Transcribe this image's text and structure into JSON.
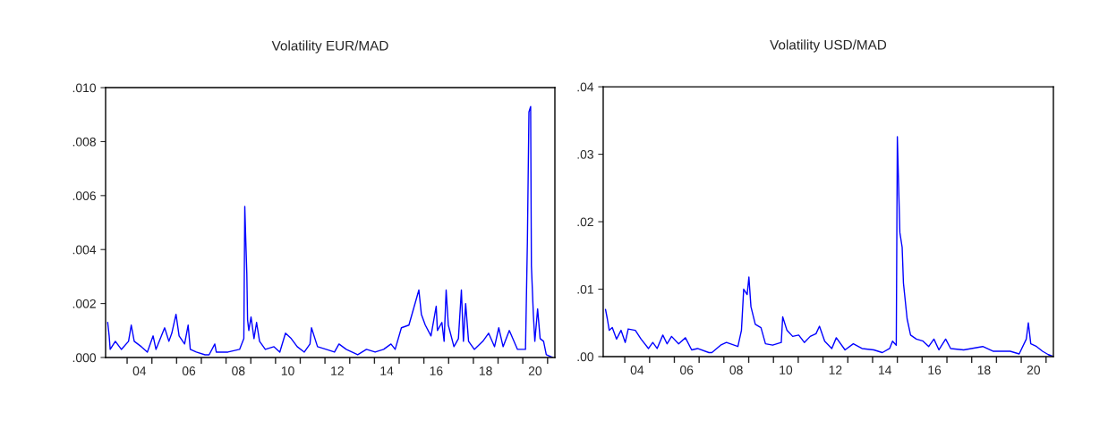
{
  "chart_data": [
    {
      "type": "line",
      "title": "Volatility EUR/MAD",
      "xlim": [
        "2003-02-17",
        "2021-04-19"
      ],
      "ylim": [
        0,
        0.01
      ],
      "xticks": [
        {
          "value": "2004-01-01",
          "label": null
        },
        {
          "value": "2005-01-01",
          "label": null
        },
        {
          "value": "2006-01-01",
          "label": null
        },
        {
          "value": "2007-01-01",
          "label": null
        },
        {
          "value": "2008-01-01",
          "label": null
        },
        {
          "value": "2009-01-01",
          "label": null
        },
        {
          "value": "2010-01-01",
          "label": null
        },
        {
          "value": "2011-01-01",
          "label": null
        },
        {
          "value": "2012-01-01",
          "label": null
        },
        {
          "value": "2013-01-01",
          "label": null
        },
        {
          "value": "2014-01-01",
          "label": null
        },
        {
          "value": "2015-01-01",
          "label": null
        },
        {
          "value": "2016-01-01",
          "label": null
        },
        {
          "value": "2017-01-01",
          "label": null
        },
        {
          "value": "2018-01-01",
          "label": null
        },
        {
          "value": "2019-01-01",
          "label": null
        },
        {
          "value": "2020-01-01",
          "label": null
        },
        {
          "value": "2021-01-01",
          "label": null
        },
        {
          "value": "2004-07-01",
          "label": "04"
        },
        {
          "value": "2006-07-01",
          "label": "06"
        },
        {
          "value": "2008-07-01",
          "label": "08"
        },
        {
          "value": "2010-07-01",
          "label": "10"
        },
        {
          "value": "2012-07-01",
          "label": "12"
        },
        {
          "value": "2014-07-01",
          "label": "14"
        },
        {
          "value": "2016-07-01",
          "label": "16"
        },
        {
          "value": "2018-07-01",
          "label": "18"
        },
        {
          "value": "2020-07-01",
          "label": "20"
        }
      ],
      "yticks": [
        {
          "value": 0,
          "label": ".000"
        },
        {
          "value": 0.002,
          "label": ".002"
        },
        {
          "value": 0.004,
          "label": ".004"
        },
        {
          "value": 0.006,
          "label": ".006"
        },
        {
          "value": 0.008,
          "label": ".008"
        },
        {
          "value": 0.01,
          "label": ".010"
        }
      ],
      "grid": false,
      "legend": false,
      "line_style": "solid",
      "marker": "none",
      "series": [
        {
          "color": "#0000ff",
          "x": [
            "2003-03-20",
            "2003-04-11",
            "2003-04-26",
            "2003-07-11",
            "2003-10-08",
            "2004-01-22",
            "2004-03-02",
            "2004-04-15",
            "2004-07-29",
            "2004-10-26",
            "2005-01-19",
            "2005-03-02",
            "2005-07-08",
            "2005-09-09",
            "2005-10-22",
            "2005-12-23",
            "2006-02-07",
            "2006-04-29",
            "2006-06-20",
            "2006-07-22",
            "2006-10-19",
            "2007-02-25",
            "2007-04-26",
            "2007-07-19",
            "2007-08-10",
            "2008-01-29",
            "2008-07-19",
            "2008-09-20",
            "2008-10-04",
            "2008-10-19",
            "2008-11-03",
            "2008-11-14",
            "2008-12-02",
            "2009-01-04",
            "2009-02-17",
            "2009-03-27",
            "2009-05-10",
            "2009-08-03",
            "2009-12-09",
            "2010-03-05",
            "2010-05-28",
            "2010-08-21",
            "2010-11-17",
            "2011-03-02",
            "2011-05-25",
            "2011-06-16",
            "2011-09-13",
            "2012-01-19",
            "2012-05-21",
            "2012-07-26",
            "2012-11-10",
            "2013-04-29",
            "2013-09-05",
            "2014-01-11",
            "2014-05-17",
            "2014-09-02",
            "2014-11-03",
            "2015-02-03",
            "2015-05-25",
            "2015-10-19",
            "2015-11-25",
            "2016-01-22",
            "2016-04-15",
            "2016-07-01",
            "2016-07-19",
            "2016-09-23",
            "2016-10-26",
            "2016-11-25",
            "2016-12-27",
            "2017-03-20",
            "2017-05-25",
            "2017-07-08",
            "2017-08-07",
            "2017-09-09",
            "2017-10-22",
            "2018-01-15",
            "2018-05-21",
            "2018-08-14",
            "2018-11-10",
            "2019-01-11",
            "2019-03-16",
            "2019-06-16",
            "2019-10-15",
            "2020-02-10",
            "2020-03-09",
            "2020-04-01",
            "2020-04-26",
            "2020-05-07",
            "2020-06-05",
            "2020-06-27",
            "2020-08-07",
            "2020-09-13",
            "2020-11-03",
            "2020-12-13",
            "2021-03-16"
          ],
          "values": [
            0.0013,
            0.0008,
            0.0003,
            0.0006,
            0.0003,
            0.0006,
            0.0012,
            0.0006,
            0.0004,
            0.0002,
            0.0008,
            0.0003,
            0.0011,
            0.0006,
            0.0009,
            0.0016,
            0.0008,
            0.0005,
            0.0012,
            0.0003,
            0.0002,
            0.0001,
            0.0001,
            0.0005,
            0.0002,
            0.0002,
            0.0003,
            0.0007,
            0.0056,
            0.0043,
            0.0031,
            0.0014,
            0.001,
            0.0015,
            0.0007,
            0.0013,
            0.0006,
            0.0003,
            0.0004,
            0.0002,
            0.0009,
            0.0007,
            0.0004,
            0.0002,
            0.0005,
            0.0011,
            0.0004,
            0.0003,
            0.0002,
            0.0005,
            0.0003,
            0.0001,
            0.0003,
            0.0002,
            0.0003,
            0.0005,
            0.0003,
            0.0011,
            0.0012,
            0.0025,
            0.0016,
            0.0012,
            0.0008,
            0.0019,
            0.001,
            0.0013,
            0.0006,
            0.0025,
            0.0012,
            0.0004,
            0.0007,
            0.0025,
            0.0006,
            0.002,
            0.0006,
            0.0003,
            0.0006,
            0.0009,
            0.0004,
            0.0011,
            0.0004,
            0.001,
            0.0003,
            0.0003,
            0.0043,
            0.0091,
            0.0093,
            0.0034,
            0.0016,
            0.0006,
            0.0018,
            0.0007,
            0.0006,
            0.0001,
            0.0
          ]
        }
      ]
    },
    {
      "type": "line",
      "title": "Volatility USD/MAD",
      "xlim": [
        "2003-02-17",
        "2021-04-19"
      ],
      "ylim": [
        0,
        0.04
      ],
      "xticks": [
        {
          "value": "2004-01-01",
          "label": null
        },
        {
          "value": "2005-01-01",
          "label": null
        },
        {
          "value": "2006-01-01",
          "label": null
        },
        {
          "value": "2007-01-01",
          "label": null
        },
        {
          "value": "2008-01-01",
          "label": null
        },
        {
          "value": "2009-01-01",
          "label": null
        },
        {
          "value": "2010-01-01",
          "label": null
        },
        {
          "value": "2011-01-01",
          "label": null
        },
        {
          "value": "2012-01-01",
          "label": null
        },
        {
          "value": "2013-01-01",
          "label": null
        },
        {
          "value": "2014-01-01",
          "label": null
        },
        {
          "value": "2015-01-01",
          "label": null
        },
        {
          "value": "2016-01-01",
          "label": null
        },
        {
          "value": "2017-01-01",
          "label": null
        },
        {
          "value": "2018-01-01",
          "label": null
        },
        {
          "value": "2019-01-01",
          "label": null
        },
        {
          "value": "2020-01-01",
          "label": null
        },
        {
          "value": "2021-01-01",
          "label": null
        },
        {
          "value": "2004-07-01",
          "label": "04"
        },
        {
          "value": "2006-07-01",
          "label": "06"
        },
        {
          "value": "2008-07-01",
          "label": "08"
        },
        {
          "value": "2010-07-01",
          "label": "10"
        },
        {
          "value": "2012-07-01",
          "label": "12"
        },
        {
          "value": "2014-07-01",
          "label": "14"
        },
        {
          "value": "2016-07-01",
          "label": "16"
        },
        {
          "value": "2018-07-01",
          "label": "18"
        },
        {
          "value": "2020-07-01",
          "label": "20"
        }
      ],
      "yticks": [
        {
          "value": 0,
          "label": ".00"
        },
        {
          "value": 0.01,
          "label": ".01"
        },
        {
          "value": 0.02,
          "label": ".02"
        },
        {
          "value": 0.03,
          "label": ".03"
        },
        {
          "value": 0.04,
          "label": ".04"
        }
      ],
      "grid": false,
      "legend": false,
      "line_style": "solid",
      "marker": "none",
      "series": [
        {
          "color": "#0000ff",
          "x": [
            "2003-03-23",
            "2003-04-19",
            "2003-05-17",
            "2003-07-01",
            "2003-09-02",
            "2003-11-07",
            "2004-01-08",
            "2004-02-21",
            "2004-06-05",
            "2004-08-28",
            "2004-12-16",
            "2005-02-17",
            "2005-04-22",
            "2005-07-15",
            "2005-09-16",
            "2005-11-21",
            "2006-03-05",
            "2006-06-13",
            "2006-09-13",
            "2006-12-09",
            "2007-05-25",
            "2007-07-08",
            "2007-11-14",
            "2008-02-07",
            "2008-07-26",
            "2008-09-16",
            "2008-10-19",
            "2008-12-09",
            "2009-01-04",
            "2009-02-03",
            "2009-04-08",
            "2009-07-01",
            "2009-09-05",
            "2009-12-20",
            "2010-04-26",
            "2010-05-17",
            "2010-07-19",
            "2010-10-11",
            "2011-01-08",
            "2011-04-01",
            "2011-06-27",
            "2011-09-20",
            "2011-11-10",
            "2012-01-26",
            "2012-05-10",
            "2012-07-15",
            "2012-11-21",
            "2013-03-23",
            "2013-07-29",
            "2014-01-19",
            "2014-05-25",
            "2014-09-09",
            "2014-10-22",
            "2014-12-16",
            "2015-01-01",
            "2015-02-07",
            "2015-03-13",
            "2015-04-01",
            "2015-05-25",
            "2015-07-15",
            "2015-10-08",
            "2016-01-15",
            "2016-04-08",
            "2016-06-23",
            "2016-09-05",
            "2016-12-13",
            "2017-02-25",
            "2017-09-05",
            "2018-06-13",
            "2018-11-10",
            "2019-07-22",
            "2019-12-02",
            "2020-03-16",
            "2020-04-15",
            "2020-05-21",
            "2020-08-14",
            "2020-11-10",
            "2021-02-03",
            "2021-03-27"
          ],
          "values": [
            0.007,
            0.0056,
            0.0039,
            0.0043,
            0.0026,
            0.0039,
            0.0021,
            0.0041,
            0.0039,
            0.0026,
            0.0012,
            0.0021,
            0.0012,
            0.0032,
            0.0019,
            0.003,
            0.0019,
            0.0028,
            0.001,
            0.0012,
            0.0006,
            0.0006,
            0.0017,
            0.0021,
            0.0015,
            0.0039,
            0.01,
            0.0092,
            0.0118,
            0.0074,
            0.0048,
            0.0043,
            0.0019,
            0.0017,
            0.0021,
            0.0059,
            0.0039,
            0.003,
            0.0032,
            0.0021,
            0.003,
            0.0034,
            0.0045,
            0.0023,
            0.0012,
            0.0028,
            0.001,
            0.0019,
            0.0012,
            0.001,
            0.0006,
            0.0012,
            0.0023,
            0.0017,
            0.0326,
            0.0184,
            0.0162,
            0.0109,
            0.0056,
            0.0032,
            0.0026,
            0.0023,
            0.0015,
            0.0026,
            0.001,
            0.0026,
            0.0012,
            0.001,
            0.0015,
            0.0008,
            0.0008,
            0.0004,
            0.0026,
            0.005,
            0.0019,
            0.0015,
            0.0008,
            0.0003,
            0.0001
          ]
        }
      ]
    }
  ]
}
